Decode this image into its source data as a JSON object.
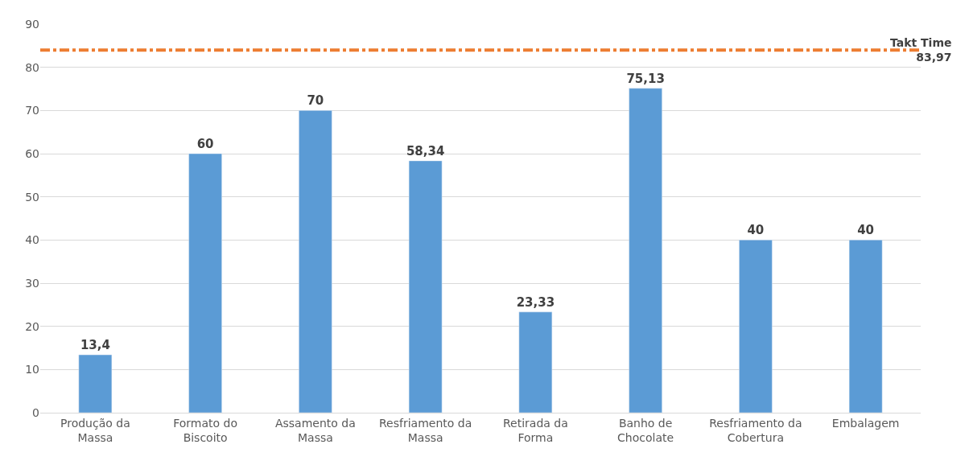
{
  "chart_data": {
    "type": "bar",
    "categories": [
      "Produção da Massa",
      "Formato do Biscoito",
      "Assamento da Massa",
      "Resfriamento da Massa",
      "Retirada da Forma",
      "Banho de Chocolate",
      "Resfriamento da Cobertura",
      "Embalagem"
    ],
    "values": [
      13.4,
      60,
      70,
      58.34,
      23.33,
      75.13,
      40,
      40
    ],
    "value_labels": [
      "13,4",
      "60",
      "70",
      "58,34",
      "23,33",
      "75,13",
      "40",
      "40"
    ],
    "color": "#5b9bd5",
    "ylim": [
      0,
      90
    ],
    "yticks": [
      0,
      10,
      20,
      30,
      40,
      50,
      60,
      70,
      80,
      90
    ],
    "grid": "y",
    "ref_lines": [
      {
        "axis": "y",
        "value": 83.97,
        "label": "Takt Time\n83,97",
        "color": "#ed7d31",
        "line_style": "dashdot"
      }
    ]
  }
}
